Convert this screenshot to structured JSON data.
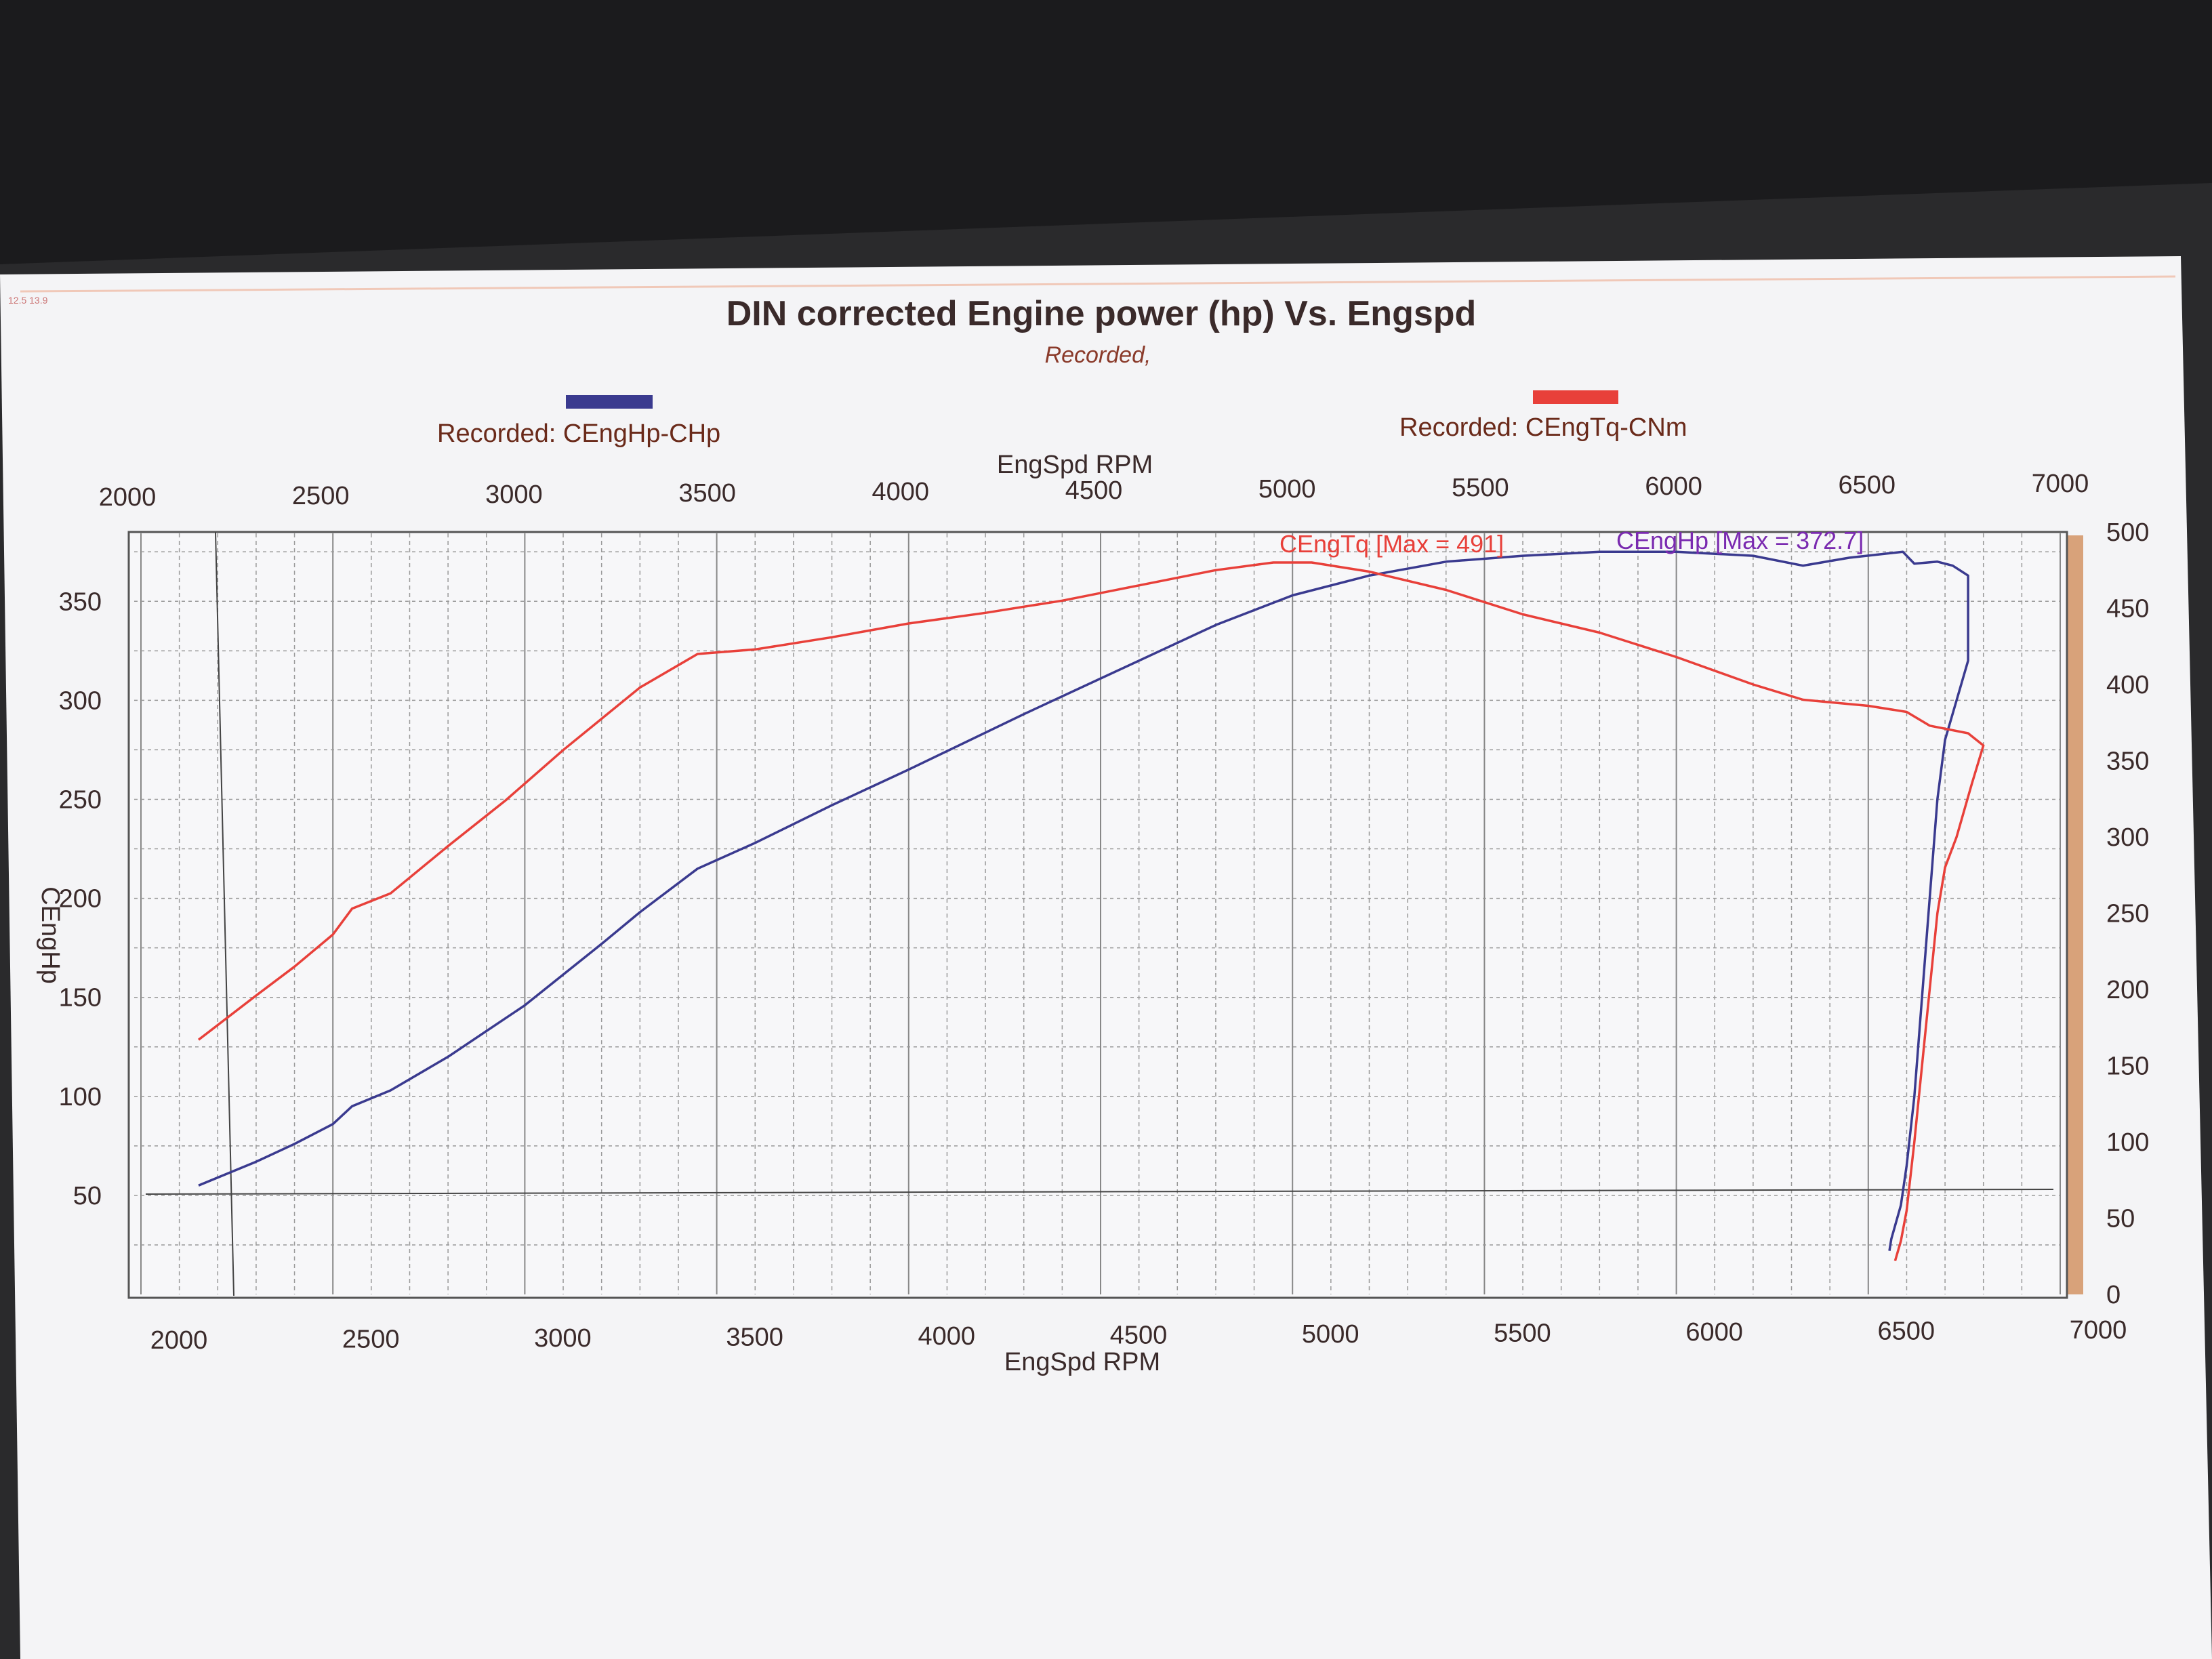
{
  "page": {
    "corner_stamp": "12.5 13.9"
  },
  "chart": {
    "title": "DIN corrected Engine power (hp) Vs. Engspd",
    "subtitle": "Recorded,",
    "legend": [
      {
        "label": "Recorded: CEngHp-CHp",
        "color": "#3a3a8f"
      },
      {
        "label": "Recorded: CEngTq-CNm",
        "color": "#e8403a"
      }
    ],
    "top_axis_label": "EngSpd RPM",
    "bottom_axis_label": "EngSpd RPM",
    "left_axis_label": "CEngHp",
    "top_ticks": [
      "2000",
      "2500",
      "3000",
      "3500",
      "4000",
      "4500",
      "5000",
      "5500",
      "6000",
      "6500",
      "7000"
    ],
    "bottom_ticks": [
      "2000",
      "2500",
      "3000",
      "3500",
      "4000",
      "4500",
      "5000",
      "5500",
      "6000",
      "6500",
      "7000"
    ],
    "left_ticks": [
      "350",
      "300",
      "250",
      "200",
      "150",
      "100",
      "50"
    ],
    "right_ticks": [
      "500",
      "450",
      "400",
      "350",
      "300",
      "250",
      "200",
      "150",
      "100",
      "50",
      "0"
    ],
    "annotation_tq": "CEngTq [Max = 491]",
    "annotation_hp": "CEngHp [Max = 372.7]"
  },
  "chart_data": {
    "type": "line",
    "title": "DIN corrected Engine power (hp) Vs. Engspd",
    "subtitle": "Recorded,",
    "xlabel": "EngSpd RPM",
    "ylabel": "CEngHp",
    "xlim": [
      2000,
      7000
    ],
    "ylim": [
      0,
      385
    ],
    "y2lim": [
      0,
      500
    ],
    "grid": true,
    "legend_position": "top",
    "series": [
      {
        "name": "Recorded: CEngHp-CHp",
        "axis": "left",
        "color": "#3a3a8f",
        "points": [
          [
            2150,
            55
          ],
          [
            2300,
            67
          ],
          [
            2400,
            76
          ],
          [
            2500,
            86
          ],
          [
            2550,
            95
          ],
          [
            2650,
            103
          ],
          [
            2800,
            120
          ],
          [
            3000,
            146
          ],
          [
            3200,
            177
          ],
          [
            3300,
            193
          ],
          [
            3450,
            215
          ],
          [
            3600,
            228
          ],
          [
            3800,
            247
          ],
          [
            4000,
            265
          ],
          [
            4300,
            293
          ],
          [
            4600,
            320
          ],
          [
            4800,
            338
          ],
          [
            5000,
            353
          ],
          [
            5200,
            363
          ],
          [
            5400,
            370
          ],
          [
            5600,
            373
          ],
          [
            5800,
            375
          ],
          [
            6000,
            375
          ],
          [
            6200,
            373
          ],
          [
            6330,
            368
          ],
          [
            6450,
            372
          ],
          [
            6590,
            375
          ],
          [
            6620,
            369
          ],
          [
            6680,
            370
          ],
          [
            6720,
            368
          ],
          [
            6760,
            363
          ],
          [
            6760,
            320
          ],
          [
            6730,
            300
          ],
          [
            6700,
            280
          ],
          [
            6680,
            250
          ],
          [
            6660,
            200
          ],
          [
            6640,
            150
          ],
          [
            6620,
            100
          ],
          [
            6600,
            65
          ],
          [
            6585,
            45
          ],
          [
            6560,
            28
          ],
          [
            6555,
            22
          ]
        ]
      },
      {
        "name": "Recorded: CEngTq-CNm",
        "axis": "right",
        "color": "#e8403a",
        "points": [
          [
            2150,
            167
          ],
          [
            2300,
            196
          ],
          [
            2400,
            215
          ],
          [
            2500,
            236
          ],
          [
            2550,
            253
          ],
          [
            2650,
            263
          ],
          [
            2800,
            294
          ],
          [
            2950,
            324
          ],
          [
            3100,
            357
          ],
          [
            3300,
            398
          ],
          [
            3450,
            420
          ],
          [
            3600,
            423
          ],
          [
            3800,
            431
          ],
          [
            4000,
            440
          ],
          [
            4200,
            447
          ],
          [
            4400,
            455
          ],
          [
            4600,
            465
          ],
          [
            4800,
            475
          ],
          [
            4950,
            480
          ],
          [
            5050,
            480
          ],
          [
            5200,
            474
          ],
          [
            5400,
            462
          ],
          [
            5600,
            446
          ],
          [
            5800,
            434
          ],
          [
            6000,
            418
          ],
          [
            6200,
            400
          ],
          [
            6330,
            390
          ],
          [
            6500,
            386
          ],
          [
            6600,
            382
          ],
          [
            6660,
            373
          ],
          [
            6760,
            368
          ],
          [
            6800,
            360
          ],
          [
            6770,
            335
          ],
          [
            6730,
            300
          ],
          [
            6700,
            280
          ],
          [
            6680,
            250
          ],
          [
            6660,
            200
          ],
          [
            6640,
            150
          ],
          [
            6620,
            100
          ],
          [
            6600,
            55
          ],
          [
            6585,
            35
          ],
          [
            6570,
            22
          ]
        ]
      }
    ]
  }
}
